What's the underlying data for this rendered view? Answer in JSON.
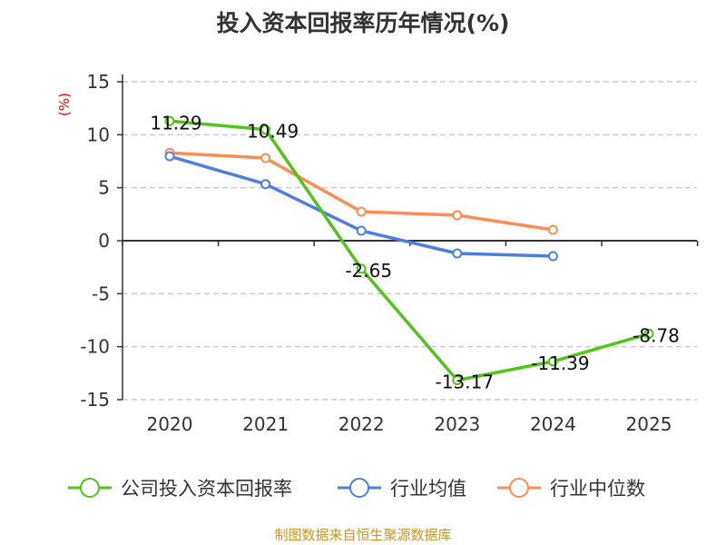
{
  "chart_data": {
    "type": "line",
    "title": "投入资本回报率历年情况(%)",
    "ylabel": "(%)",
    "xlabel": "",
    "categories": [
      "2020",
      "2021",
      "2022",
      "2023",
      "2024",
      "2025"
    ],
    "ylim": [
      -15,
      15
    ],
    "yticks": [
      15,
      10,
      5,
      0,
      -5,
      -10,
      -15
    ],
    "grid": true,
    "legend_position": "bottom",
    "series": [
      {
        "name": "公司投入资本回报率",
        "color": "#52c41a",
        "values": [
          11.29,
          10.49,
          -2.65,
          -13.17,
          -11.39,
          -8.78
        ],
        "labels": [
          "11.29",
          "10.49",
          "-2.65",
          "-13.17",
          "-11.39",
          "-8.78"
        ]
      },
      {
        "name": "行业均值",
        "color": "#4e7fe0",
        "values": [
          7.97,
          5.34,
          0.94,
          -1.2,
          -1.46,
          null
        ]
      },
      {
        "name": "行业中位数",
        "color": "#ff8c55",
        "values": [
          8.29,
          7.8,
          2.74,
          2.4,
          1.03,
          null
        ]
      }
    ]
  },
  "source": "制图数据来自恒生聚源数据库"
}
